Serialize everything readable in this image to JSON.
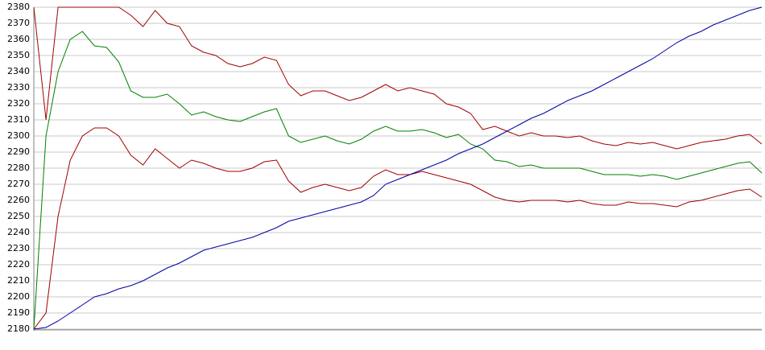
{
  "chart_data": {
    "type": "line",
    "categories": [
      null,
      null,
      null,
      null,
      null,
      null,
      null,
      null,
      null,
      null,
      null,
      null,
      null,
      null,
      null,
      null,
      null,
      null,
      null,
      null,
      null,
      null,
      null,
      null,
      null,
      null,
      null,
      null,
      null,
      null,
      null,
      null,
      null,
      null,
      null,
      null,
      null,
      null,
      null,
      null,
      null,
      null,
      null,
      null,
      null,
      null,
      null,
      null,
      null,
      null,
      null,
      null,
      null,
      null,
      null,
      null,
      null,
      null,
      null,
      null,
      null
    ],
    "series": [
      {
        "color": "#a00000",
        "values": [
          2380,
          2310,
          2380,
          2380,
          2380,
          2380,
          2380,
          2380,
          2375,
          2368,
          2378,
          2370,
          2368,
          2356,
          2352,
          2350,
          2345,
          2343,
          2345,
          2349,
          2347,
          2332,
          2325,
          2328,
          2328,
          2325,
          2322,
          2324,
          2328,
          2332,
          2328,
          2330,
          2328,
          2326,
          2320,
          2318,
          2314,
          2304,
          2306,
          2303,
          2300,
          2302,
          2300,
          2300,
          2299,
          2300,
          2297,
          2295,
          2294,
          2296,
          2295,
          2296,
          2294,
          2292,
          2294,
          2296,
          2297,
          2298,
          2300,
          2301,
          2295
        ]
      },
      {
        "color": "#008000",
        "values": [
          2180,
          2300,
          2340,
          2360,
          2365,
          2356,
          2355,
          2346,
          2328,
          2324,
          2324,
          2326,
          2320,
          2313,
          2315,
          2312,
          2310,
          2309,
          2312,
          2315,
          2317,
          2300,
          2296,
          2298,
          2300,
          2297,
          2295,
          2298,
          2303,
          2306,
          2303,
          2303,
          2304,
          2302,
          2299,
          2301,
          2295,
          2292,
          2285,
          2284,
          2281,
          2282,
          2280,
          2280,
          2280,
          2280,
          2278,
          2276,
          2276,
          2276,
          2275,
          2276,
          2275,
          2273,
          2275,
          2277,
          2279,
          2281,
          2283,
          2284,
          2277
        ]
      },
      {
        "color": "#a00000",
        "values": [
          2180,
          2190,
          2250,
          2285,
          2300,
          2305,
          2305,
          2300,
          2288,
          2282,
          2292,
          2286,
          2280,
          2285,
          2283,
          2280,
          2278,
          2278,
          2280,
          2284,
          2285,
          2272,
          2265,
          2268,
          2270,
          2268,
          2266,
          2268,
          2275,
          2279,
          2276,
          2276,
          2278,
          2276,
          2274,
          2272,
          2270,
          2266,
          2262,
          2260,
          2259,
          2260,
          2260,
          2260,
          2259,
          2260,
          2258,
          2257,
          2257,
          2259,
          2258,
          2258,
          2257,
          2256,
          2259,
          2260,
          2262,
          2264,
          2266,
          2267,
          2262
        ]
      },
      {
        "color": "#0000a0",
        "values": [
          2180,
          2181,
          2185,
          2190,
          2195,
          2200,
          2202,
          2205,
          2207,
          2210,
          2214,
          2218,
          2221,
          2225,
          2229,
          2231,
          2233,
          2235,
          2237,
          2240,
          2243,
          2247,
          2249,
          2251,
          2253,
          2255,
          2257,
          2259,
          2263,
          2270,
          2273,
          2276,
          2279,
          2282,
          2285,
          2289,
          2292,
          2295,
          2299,
          2303,
          2307,
          2311,
          2314,
          2318,
          2322,
          2325,
          2328,
          2332,
          2336,
          2340,
          2344,
          2348,
          2353,
          2358,
          2362,
          2365,
          2369,
          2372,
          2375,
          2378,
          2380
        ]
      }
    ],
    "ylim": [
      2180,
      2380
    ],
    "yticks": [
      2180,
      2190,
      2200,
      2210,
      2220,
      2230,
      2240,
      2250,
      2260,
      2270,
      2280,
      2290,
      2300,
      2310,
      2320,
      2330,
      2340,
      2350,
      2360,
      2370,
      2380
    ],
    "grid": true
  }
}
